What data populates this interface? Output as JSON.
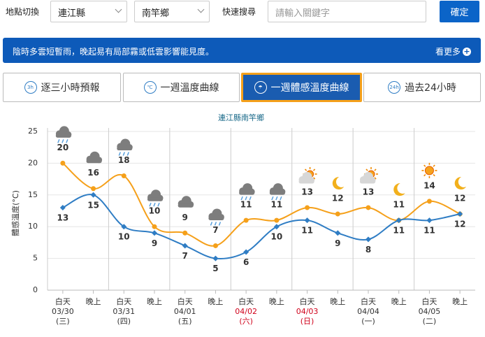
{
  "toolbar": {
    "location_label": "地點切換",
    "county": "連江縣",
    "township": "南竿鄉",
    "search_label": "快速搜尋",
    "search_placeholder": "請輸入關鍵字",
    "button": "確定"
  },
  "banner": {
    "text": "陰時多雲短暫雨，晚起易有局部霧或低雲影響能見度。",
    "more": "看更多"
  },
  "tabs": [
    "逐三小時預報",
    "一週溫度曲線",
    "一週體感溫度曲線",
    "過去24小時"
  ],
  "active_tab": 2,
  "chart_data": {
    "type": "line",
    "title": "連江縣南竿鄉",
    "y_label": "體感溫度(°C)",
    "categories": [
      "白天",
      "晚上",
      "白天",
      "晚上",
      "白天",
      "晚上",
      "白天",
      "晚上",
      "白天",
      "晚上",
      "白天",
      "晚上",
      "白天",
      "晚上"
    ],
    "days": [
      {
        "date": "03/30",
        "weekday": "(三)"
      },
      {
        "date": "03/31",
        "weekday": "(四)"
      },
      {
        "date": "04/01",
        "weekday": "(五)"
      },
      {
        "date": "04/02",
        "weekday": "(六)",
        "color": "#d0021b"
      },
      {
        "date": "04/03",
        "weekday": "(日)",
        "color": "#d0021b"
      },
      {
        "date": "04/04",
        "weekday": "(一)"
      },
      {
        "date": "04/05",
        "weekday": "(二)"
      }
    ],
    "series": [
      {
        "color": "#f5a01a",
        "marker": "circle",
        "values": [
          20,
          16,
          18,
          10,
          9,
          7,
          11,
          11,
          13,
          12,
          13,
          11,
          14,
          12
        ]
      },
      {
        "color": "#2f7dc4",
        "marker": "diamond",
        "values": [
          13,
          15,
          10,
          9,
          7,
          5,
          6,
          10,
          11,
          9,
          8,
          11,
          11,
          12
        ]
      }
    ],
    "ylim": [
      0,
      25
    ],
    "yticks": [
      0,
      5,
      10,
      15,
      20,
      25
    ],
    "grid": true
  }
}
